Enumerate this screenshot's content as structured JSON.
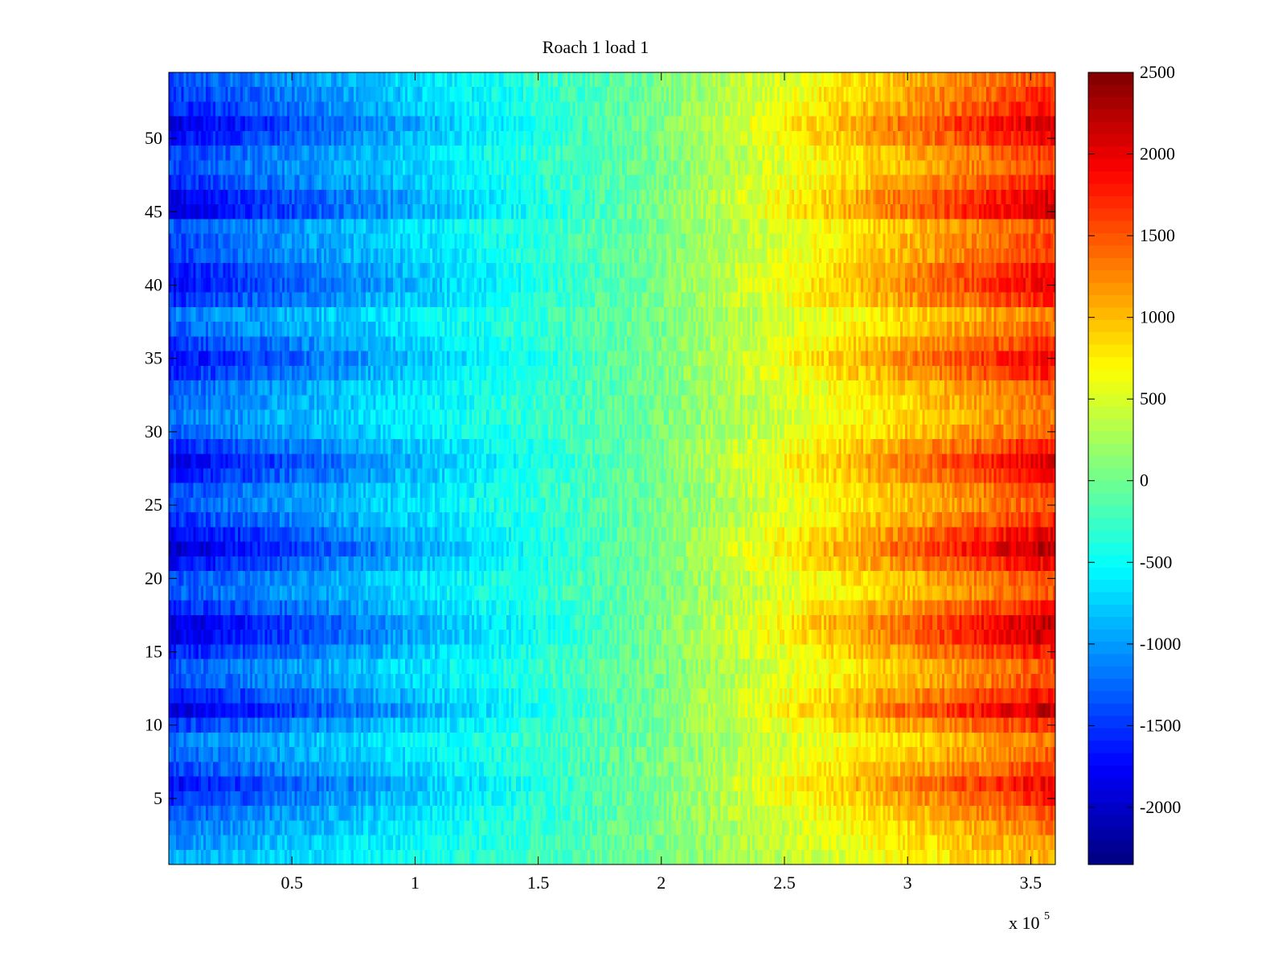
{
  "chart_data": {
    "type": "heatmap",
    "title": "Roach 1 load 1",
    "xlabel": "",
    "ylabel": "",
    "x_multiplier_label": "x 10",
    "x_multiplier_exponent": "5",
    "xlim": [
      0.0,
      3.6
    ],
    "ylim": [
      0.5,
      54.5
    ],
    "xticks": [
      0.5,
      1,
      1.5,
      2,
      2.5,
      3,
      3.5
    ],
    "xtick_labels": [
      "0.5",
      "1",
      "1.5",
      "2",
      "2.5",
      "3",
      "3.5"
    ],
    "yticks": [
      5,
      10,
      15,
      20,
      25,
      30,
      35,
      40,
      45,
      50
    ],
    "ytick_labels": [
      "5",
      "10",
      "15",
      "20",
      "25",
      "30",
      "35",
      "40",
      "45",
      "50"
    ],
    "rows": 54,
    "colormap": "jet",
    "colorbar": {
      "clim": [
        -2350,
        2500
      ],
      "ticks": [
        2500,
        2000,
        1500,
        1000,
        500,
        0,
        -500,
        -1000,
        -1500,
        -2000
      ],
      "tick_labels": [
        "2500",
        "2000",
        "1500",
        "1000",
        "500",
        "0",
        "-500",
        "-1000",
        "-1500",
        "-2000"
      ]
    },
    "row_amplitude": [
      0.25,
      0.35,
      0.45,
      0.6,
      0.8,
      0.95,
      0.7,
      0.55,
      0.45,
      0.75,
      1.15,
      0.9,
      0.65,
      0.6,
      0.85,
      1.1,
      1.15,
      0.85,
      0.6,
      0.65,
      0.95,
      1.2,
      1.0,
      0.75,
      0.6,
      0.65,
      0.9,
      1.05,
      0.8,
      0.55,
      0.45,
      0.5,
      0.55,
      0.8,
      0.95,
      0.75,
      0.55,
      0.45,
      0.8,
      0.95,
      0.9,
      0.7,
      0.65,
      0.6,
      1.1,
      1.05,
      0.8,
      0.65,
      0.7,
      0.95,
      1.1,
      0.85,
      0.75,
      0.65
    ],
    "gradient": {
      "x_at_zero": 1.95,
      "left_value": -1500,
      "right_value": 1700
    }
  }
}
